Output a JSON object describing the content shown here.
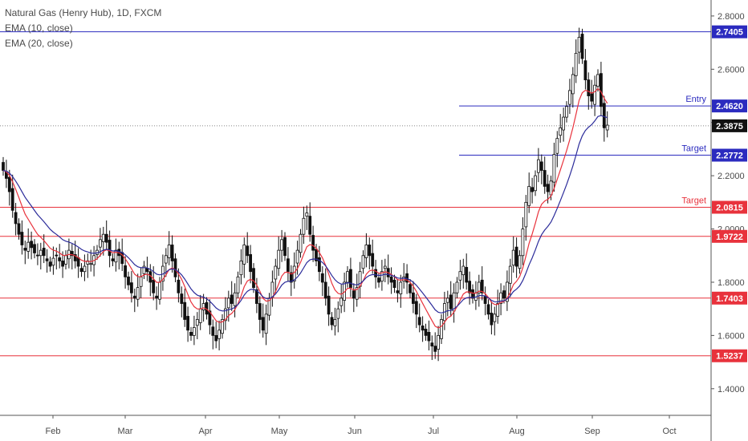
{
  "chart_data": {
    "type": "candlestick",
    "title": "Natural Gas (Henry Hub), 1D, FXCM",
    "indicators": [
      "EMA (10, close)",
      "EMA (20, close)"
    ],
    "ylim": [
      1.3,
      2.86
    ],
    "y_ticks": [
      1.4,
      1.6,
      1.8,
      2.0,
      2.2,
      2.4,
      2.6,
      2.8
    ],
    "y_tick_labels": [
      "1.4000",
      "1.6000",
      "1.8000",
      "2.0000",
      "2.2000",
      "2.4000",
      "2.6000",
      "2.8000"
    ],
    "x_labels": [
      "Feb",
      "Mar",
      "Apr",
      "May",
      "Jun",
      "Jul",
      "Aug",
      "Sep",
      "Oct"
    ],
    "last_price": 2.3875,
    "last_price_label": "2.3875",
    "levels": [
      {
        "value": 2.7405,
        "label": "2.7405",
        "color": "#2b2bbf",
        "text": ""
      },
      {
        "value": 2.462,
        "label": "2.4620",
        "color": "#2b2bbf",
        "text": "Entry"
      },
      {
        "value": 2.2772,
        "label": "2.2772",
        "color": "#2b2bbf",
        "text": "Target"
      },
      {
        "value": 2.0815,
        "label": "2.0815",
        "color": "#e8323c",
        "text": "Target"
      },
      {
        "value": 1.9722,
        "label": "1.9722",
        "color": "#e8323c",
        "text": ""
      },
      {
        "value": 1.7403,
        "label": "1.7403",
        "color": "#e8323c",
        "text": ""
      },
      {
        "value": 1.5237,
        "label": "1.5237",
        "color": "#e8323c",
        "text": ""
      }
    ],
    "candles_close": [
      2.22,
      2.19,
      2.14,
      2.07,
      2.02,
      1.98,
      1.94,
      1.92,
      1.95,
      1.93,
      1.91,
      1.9,
      1.92,
      1.9,
      1.88,
      1.86,
      1.89,
      1.9,
      1.88,
      1.86,
      1.9,
      1.92,
      1.9,
      1.88,
      1.86,
      1.84,
      1.86,
      1.88,
      1.87,
      1.9,
      1.92,
      1.96,
      1.98,
      1.95,
      1.9,
      1.88,
      1.92,
      1.9,
      1.87,
      1.82,
      1.79,
      1.76,
      1.74,
      1.78,
      1.82,
      1.86,
      1.84,
      1.8,
      1.76,
      1.74,
      1.8,
      1.86,
      1.9,
      1.94,
      1.88,
      1.82,
      1.76,
      1.72,
      1.66,
      1.62,
      1.6,
      1.63,
      1.66,
      1.7,
      1.72,
      1.68,
      1.64,
      1.6,
      1.58,
      1.62,
      1.66,
      1.7,
      1.74,
      1.72,
      1.76,
      1.82,
      1.88,
      1.94,
      1.9,
      1.84,
      1.78,
      1.72,
      1.66,
      1.62,
      1.68,
      1.74,
      1.8,
      1.86,
      1.92,
      1.96,
      1.9,
      1.84,
      1.8,
      1.86,
      1.92,
      1.98,
      2.04,
      2.06,
      1.98,
      1.92,
      1.88,
      1.84,
      1.8,
      1.74,
      1.68,
      1.64,
      1.66,
      1.7,
      1.74,
      1.8,
      1.84,
      1.78,
      1.74,
      1.78,
      1.84,
      1.9,
      1.94,
      1.9,
      1.86,
      1.82,
      1.8,
      1.84,
      1.86,
      1.82,
      1.8,
      1.78,
      1.76,
      1.8,
      1.82,
      1.8,
      1.76,
      1.72,
      1.68,
      1.64,
      1.62,
      1.6,
      1.58,
      1.56,
      1.54,
      1.6,
      1.66,
      1.72,
      1.74,
      1.7,
      1.76,
      1.8,
      1.84,
      1.86,
      1.8,
      1.76,
      1.74,
      1.76,
      1.8,
      1.76,
      1.72,
      1.68,
      1.64,
      1.68,
      1.72,
      1.76,
      1.74,
      1.8,
      1.86,
      1.92,
      1.86,
      1.9,
      2.0,
      2.1,
      2.16,
      2.14,
      2.2,
      2.26,
      2.22,
      2.16,
      2.14,
      2.18,
      2.28,
      2.34,
      2.38,
      2.42,
      2.46,
      2.52,
      2.58,
      2.66,
      2.72,
      2.64,
      2.56,
      2.5,
      2.48,
      2.54,
      2.58,
      2.46,
      2.38,
      2.39
    ]
  }
}
